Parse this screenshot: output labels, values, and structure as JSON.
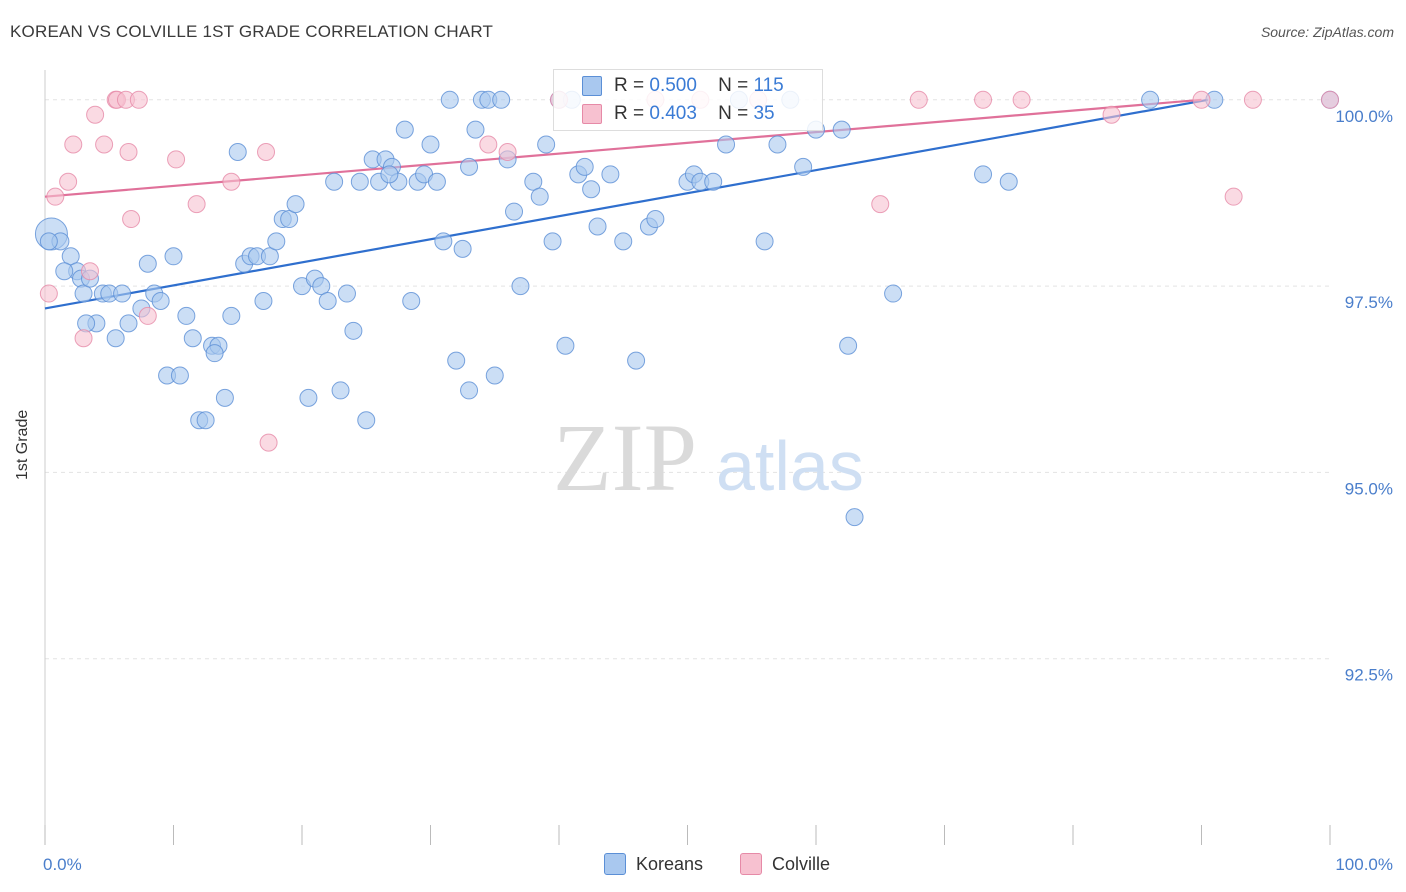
{
  "header": {
    "title": "KOREAN VS COLVILLE 1ST GRADE CORRELATION CHART",
    "source": "Source: ZipAtlas.com"
  },
  "watermark": {
    "zip": "ZIP",
    "atlas": "atlas"
  },
  "legend": {
    "koreans": {
      "r_label": "R =",
      "r": "0.500",
      "n_label": "N =",
      "n": "115"
    },
    "colville": {
      "r_label": "R =",
      "r": "0.403",
      "n_label": "N =",
      "n": "35"
    }
  },
  "bottom_legend": {
    "koreans": "Koreans",
    "colville": "Colville"
  },
  "colors": {
    "koreans_fill": "#a9c8ef",
    "koreans_stroke": "#5b8fd6",
    "koreans_line": "#2f6fce",
    "colville_fill": "#f7c1d0",
    "colville_stroke": "#e68aa7",
    "colville_line": "#e0719a",
    "tick_label": "#4a7ecb",
    "grid": "#e3e3e3"
  },
  "chart_data": {
    "type": "scatter",
    "title": "KOREAN VS COLVILLE 1ST GRADE CORRELATION CHART",
    "xlabel": "",
    "ylabel": "1st Grade",
    "xlim": [
      0,
      100
    ],
    "ylim": [
      90.0,
      100.4
    ],
    "x_tick_labels": [
      "0.0%",
      "100.0%"
    ],
    "y_ticks": [
      92.5,
      95.0,
      97.5,
      100.0
    ],
    "y_tick_labels": [
      "92.5%",
      "95.0%",
      "97.5%",
      "100.0%"
    ],
    "grid": true,
    "legend_position": "top-center",
    "series": [
      {
        "name": "Koreans",
        "trend": {
          "x": [
            0,
            90.5
          ],
          "y": [
            97.2,
            100.0
          ]
        },
        "points": [
          [
            0.5,
            98.2
          ],
          [
            1.2,
            98.1
          ],
          [
            2,
            97.9
          ],
          [
            2.5,
            97.7
          ],
          [
            2.8,
            97.6
          ],
          [
            3,
            97.4
          ],
          [
            3.5,
            97.6
          ],
          [
            4,
            97.0
          ],
          [
            4.5,
            97.4
          ],
          [
            5,
            97.4
          ],
          [
            5.5,
            96.8
          ],
          [
            6,
            97.4
          ],
          [
            6.5,
            97.0
          ],
          [
            7.5,
            97.2
          ],
          [
            8.5,
            97.4
          ],
          [
            9,
            97.3
          ],
          [
            9.5,
            96.3
          ],
          [
            10,
            97.9
          ],
          [
            10.5,
            96.3
          ],
          [
            11,
            97.1
          ],
          [
            11.5,
            96.8
          ],
          [
            12,
            95.7
          ],
          [
            12.5,
            95.7
          ],
          [
            13,
            96.7
          ],
          [
            13.5,
            96.7
          ],
          [
            14,
            96.0
          ],
          [
            14.5,
            97.1
          ],
          [
            15,
            99.3
          ],
          [
            15.5,
            97.8
          ],
          [
            16,
            97.9
          ],
          [
            16.5,
            97.9
          ],
          [
            17,
            97.3
          ],
          [
            17.5,
            97.9
          ],
          [
            18,
            98.1
          ],
          [
            18.5,
            98.4
          ],
          [
            19,
            98.4
          ],
          [
            19.5,
            98.6
          ],
          [
            20,
            97.5
          ],
          [
            20.5,
            96.0
          ],
          [
            21,
            97.6
          ],
          [
            21.5,
            97.5
          ],
          [
            22,
            97.3
          ],
          [
            22.5,
            98.9
          ],
          [
            23,
            96.1
          ],
          [
            23.5,
            97.4
          ],
          [
            24,
            96.9
          ],
          [
            24.5,
            98.9
          ],
          [
            25,
            95.7
          ],
          [
            25.5,
            99.2
          ],
          [
            26,
            98.9
          ],
          [
            26.5,
            99.2
          ],
          [
            27,
            99.1
          ],
          [
            27.5,
            98.9
          ],
          [
            28,
            99.6
          ],
          [
            28.5,
            97.3
          ],
          [
            29,
            98.9
          ],
          [
            29.5,
            99.0
          ],
          [
            30,
            99.4
          ],
          [
            30.5,
            98.9
          ],
          [
            31,
            98.1
          ],
          [
            31.5,
            100.0
          ],
          [
            32,
            96.5
          ],
          [
            32.5,
            98.0
          ],
          [
            33,
            96.1
          ],
          [
            33.5,
            99.6
          ],
          [
            34,
            100.0
          ],
          [
            34.5,
            100.0
          ],
          [
            35,
            96.3
          ],
          [
            35.5,
            100.0
          ],
          [
            36,
            99.2
          ],
          [
            36.5,
            98.5
          ],
          [
            37,
            97.5
          ],
          [
            38,
            98.9
          ],
          [
            38.5,
            98.7
          ],
          [
            39,
            99.4
          ],
          [
            39.5,
            98.1
          ],
          [
            40,
            100.0
          ],
          [
            40.5,
            96.7
          ],
          [
            41,
            100.0
          ],
          [
            41.5,
            99.0
          ],
          [
            42,
            99.1
          ],
          [
            42.5,
            98.8
          ],
          [
            43,
            98.3
          ],
          [
            45,
            98.1
          ],
          [
            46,
            96.5
          ],
          [
            47,
            98.3
          ],
          [
            47.5,
            98.4
          ],
          [
            50,
            98.9
          ],
          [
            50.5,
            99.0
          ],
          [
            51,
            98.9
          ],
          [
            52,
            98.9
          ],
          [
            53,
            99.4
          ],
          [
            54,
            100.0
          ],
          [
            56,
            98.1
          ],
          [
            57,
            99.4
          ],
          [
            58,
            100.0
          ],
          [
            59,
            99.1
          ],
          [
            60,
            99.6
          ],
          [
            62,
            99.6
          ],
          [
            62.5,
            96.7
          ],
          [
            63,
            94.4
          ],
          [
            66,
            97.4
          ],
          [
            73,
            99.0
          ],
          [
            75,
            98.9
          ],
          [
            86,
            100.0
          ],
          [
            91,
            100.0
          ],
          [
            100,
            100.0
          ],
          [
            0.3,
            98.1
          ],
          [
            1.5,
            97.7
          ],
          [
            3.2,
            97.0
          ],
          [
            8,
            97.8
          ],
          [
            13.2,
            96.6
          ],
          [
            26.8,
            99.0
          ],
          [
            33,
            99.1
          ],
          [
            44,
            99.0
          ]
        ]
      },
      {
        "name": "Colville",
        "trend": {
          "x": [
            0,
            90
          ],
          "y": [
            98.7,
            100.0
          ]
        },
        "points": [
          [
            0.3,
            97.4
          ],
          [
            0.8,
            98.7
          ],
          [
            1.8,
            98.9
          ],
          [
            2.2,
            99.4
          ],
          [
            3,
            96.8
          ],
          [
            3.5,
            97.7
          ],
          [
            3.9,
            99.8
          ],
          [
            4.6,
            99.4
          ],
          [
            5.5,
            100.0
          ],
          [
            5.6,
            100.0
          ],
          [
            6.3,
            100.0
          ],
          [
            6.5,
            99.3
          ],
          [
            6.7,
            98.4
          ],
          [
            7.3,
            100.0
          ],
          [
            8,
            97.1
          ],
          [
            10.2,
            99.2
          ],
          [
            11.8,
            98.6
          ],
          [
            14.5,
            98.9
          ],
          [
            17.2,
            99.3
          ],
          [
            17.4,
            95.4
          ],
          [
            34.5,
            99.4
          ],
          [
            36,
            99.3
          ],
          [
            40,
            100.0
          ],
          [
            47.5,
            100.0
          ],
          [
            51,
            100.0
          ],
          [
            55.5,
            100.0
          ],
          [
            65,
            98.6
          ],
          [
            68,
            100.0
          ],
          [
            73,
            100.0
          ],
          [
            76,
            100.0
          ],
          [
            83,
            99.8
          ],
          [
            90,
            100.0
          ],
          [
            92.5,
            98.7
          ],
          [
            94,
            100.0
          ],
          [
            100,
            100.0
          ]
        ]
      }
    ]
  }
}
